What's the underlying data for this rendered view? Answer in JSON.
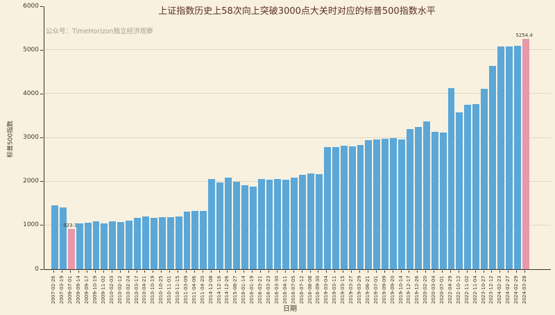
{
  "chart_data": {
    "type": "bar",
    "title": "上证指数历史上58次向上突破3000点大关时对应的标普500指数水平",
    "watermark": "公众号：TimeHorizon独立经济观察",
    "xlabel": "日期",
    "ylabel": "标普500指数",
    "ylim": [
      0,
      6000
    ],
    "yticks": [
      0,
      1000,
      2000,
      3000,
      4000,
      5000,
      6000
    ],
    "grid": "horizontal",
    "legend_position": "none",
    "bar_color": "#5aa7d8",
    "highlight_color": "#e898ab",
    "background_color": "#f8f1e0",
    "categories": [
      "2007-02-26",
      "2007-03-19",
      "2009-07-01",
      "2009-09-14",
      "2009-09-17",
      "2009-10-19",
      "2009-11-02",
      "2010-02-03",
      "2010-02-12",
      "2010-02-24",
      "2010-03-17",
      "2010-04-21",
      "2010-10-19",
      "2010-10-25",
      "2010-11-01",
      "2010-11-15",
      "2011-03-09",
      "2011-04-06",
      "2011-04-20",
      "2014-12-08",
      "2014-12-16",
      "2014-12-26",
      "2015-08-27",
      "2016-01-14",
      "2016-01-19",
      "2016-03-21",
      "2016-03-23",
      "2016-03-30",
      "2016-04-11",
      "2016-07-05",
      "2016-07-12",
      "2016-08-08",
      "2016-09-30",
      "2019-03-04",
      "2019-03-11",
      "2019-03-15",
      "2019-03-27",
      "2019-03-29",
      "2019-06-21",
      "2019-07-01",
      "2019-09-09",
      "2019-09-20",
      "2019-10-14",
      "2019-12-17",
      "2019-12-26",
      "2020-02-20",
      "2020-03-04",
      "2020-07-01",
      "2022-04-29",
      "2022-10-12",
      "2022-11-02",
      "2022-11-04",
      "2023-10-27",
      "2023-12-12",
      "2024-02-23",
      "2024-02-27",
      "2024-02-29",
      "2024-03-28"
    ],
    "values": [
      1449.4,
      1402.1,
      923.3,
      1049.3,
      1065.5,
      1097.9,
      1042.9,
      1097.3,
      1075.5,
      1105.2,
      1166.2,
      1205.9,
      1165.9,
      1185.6,
      1184.4,
      1197.8,
      1320.0,
      1335.5,
      1330.4,
      2060.3,
      1972.7,
      2088.8,
      1987.7,
      1921.8,
      1881.3,
      2051.6,
      2036.7,
      2064.0,
      2042.0,
      2088.6,
      2152.1,
      2180.9,
      2168.3,
      2792.8,
      2783.3,
      2822.5,
      2805.4,
      2834.4,
      2950.5,
      2964.3,
      2978.4,
      2992.1,
      2966.2,
      3192.5,
      3239.9,
      3373.2,
      3130.1,
      3115.9,
      4131.9,
      3577.0,
      3759.7,
      3770.6,
      4117.4,
      4643.7,
      5088.8,
      5078.2,
      5096.3,
      5254.4
    ],
    "highlight_indices": [
      2,
      57
    ],
    "annotations": [
      {
        "index": 2,
        "text": "923.3"
      },
      {
        "index": 57,
        "text": "5254.4"
      }
    ]
  }
}
